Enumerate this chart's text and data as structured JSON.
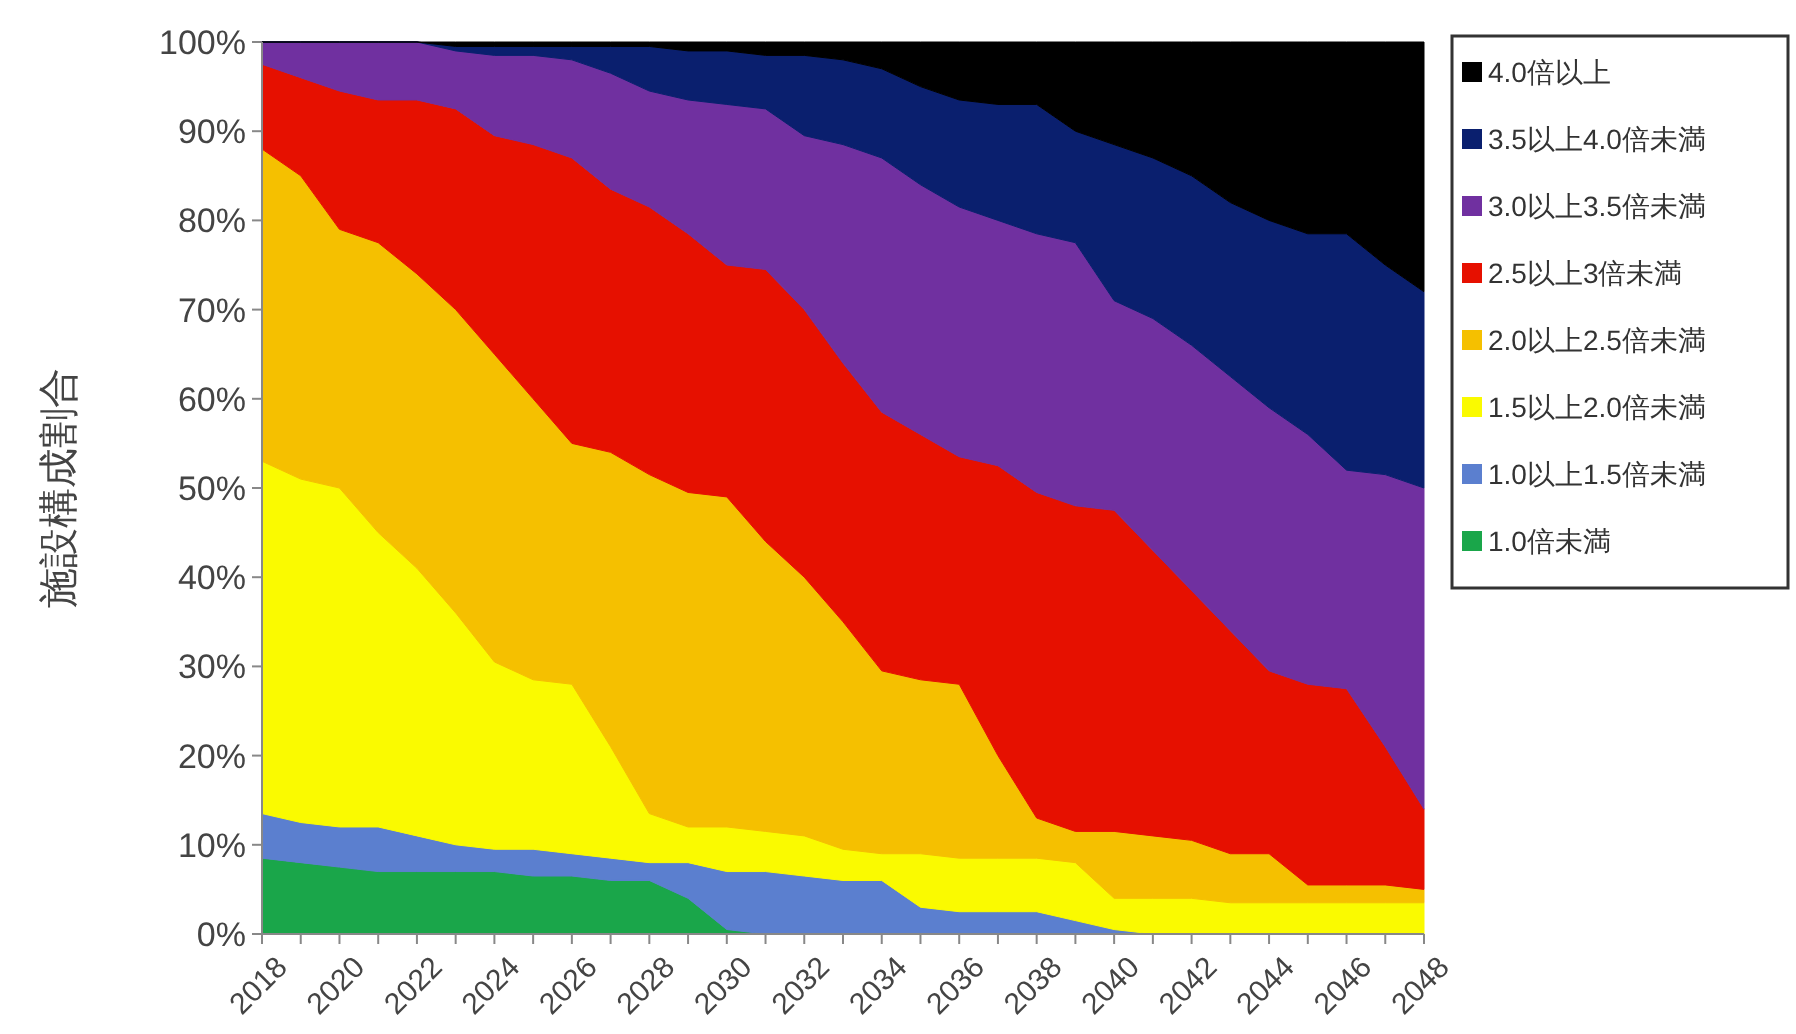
{
  "chart_data": {
    "type": "area",
    "stacked": true,
    "ylabel": "施設構成割合",
    "x": [
      2018,
      2019,
      2020,
      2021,
      2022,
      2023,
      2024,
      2025,
      2026,
      2027,
      2028,
      2029,
      2030,
      2031,
      2032,
      2033,
      2034,
      2035,
      2036,
      2037,
      2038,
      2039,
      2040,
      2041,
      2042,
      2043,
      2044,
      2045,
      2046,
      2047,
      2048
    ],
    "xlim": [
      2018,
      2048
    ],
    "xticks": [
      2018,
      {
        "value": 2019,
        "label": null
      },
      2020,
      {
        "value": 2021,
        "label": null
      },
      2022,
      {
        "value": 2023,
        "label": null
      },
      2024,
      {
        "value": 2025,
        "label": null
      },
      2026,
      {
        "value": 2027,
        "label": null
      },
      2028,
      {
        "value": 2029,
        "label": null
      },
      2030,
      {
        "value": 2031,
        "label": null
      },
      2032,
      {
        "value": 2033,
        "label": null
      },
      2034,
      {
        "value": 2035,
        "label": null
      },
      2036,
      {
        "value": 2037,
        "label": null
      },
      2038,
      {
        "value": 2039,
        "label": null
      },
      2040,
      {
        "value": 2041,
        "label": null
      },
      2042,
      {
        "value": 2043,
        "label": null
      },
      2044,
      {
        "value": 2045,
        "label": null
      },
      2046,
      {
        "value": 2047,
        "label": null
      },
      2048
    ],
    "ylim": [
      0,
      100
    ],
    "yticks": [
      {
        "value": 0,
        "label": "0%"
      },
      {
        "value": 10,
        "label": "10%"
      },
      {
        "value": 20,
        "label": "20%"
      },
      {
        "value": 30,
        "label": "30%"
      },
      {
        "value": 40,
        "label": "40%"
      },
      {
        "value": 50,
        "label": "50%"
      },
      {
        "value": 60,
        "label": "60%"
      },
      {
        "value": 70,
        "label": "70%"
      },
      {
        "value": 80,
        "label": "80%"
      },
      {
        "value": 90,
        "label": "90%"
      },
      {
        "value": 100,
        "label": "100%"
      }
    ],
    "grid": false,
    "legend": "right",
    "series": [
      {
        "name": "1.0倍未満",
        "color": "#1aa64a",
        "values": [
          8.5,
          8,
          7.5,
          7,
          7,
          7,
          7,
          6.5,
          6.5,
          6,
          6,
          4,
          0.5,
          0,
          0,
          0,
          0,
          0,
          0,
          0,
          0,
          0,
          0,
          0,
          0,
          0,
          0,
          0,
          0,
          0,
          0
        ]
      },
      {
        "name": "1.0以上1.5倍未満",
        "color": "#5b7fcf",
        "values": [
          5,
          4.5,
          4.5,
          5,
          4,
          3,
          2.5,
          3,
          2.5,
          2.5,
          2,
          4,
          6.5,
          7,
          6.5,
          6,
          6,
          3,
          2.5,
          2.5,
          2.5,
          1.5,
          0.5,
          0,
          0,
          0,
          0,
          0,
          0,
          0,
          0
        ]
      },
      {
        "name": "1.5以上2.0倍未満",
        "color": "#fafa00",
        "values": [
          39.5,
          38.5,
          38,
          33,
          30,
          26,
          21,
          19,
          19,
          12.5,
          5.5,
          4,
          5,
          4.5,
          4.5,
          3.5,
          3,
          6,
          6,
          6,
          6,
          6.5,
          3.5,
          4,
          4,
          3.5,
          3.5,
          3.5,
          3.5,
          3.5,
          3.5
        ]
      },
      {
        "name": "2.0以上2.5倍未満",
        "color": "#f5c000",
        "values": [
          35,
          34,
          29,
          32.5,
          33,
          34,
          34.5,
          31.5,
          27,
          33,
          38,
          37.5,
          37,
          32.5,
          29,
          25.5,
          20.5,
          19.5,
          19.5,
          11.5,
          4.5,
          3.5,
          7.5,
          7,
          6.5,
          5.5,
          5.5,
          2,
          2,
          2,
          1.5
        ]
      },
      {
        "name": "2.5以上3倍未満",
        "color": "#e61000",
        "values": [
          9.5,
          11,
          15.5,
          16,
          19.5,
          22.5,
          24.5,
          28.5,
          32,
          29.5,
          30,
          29,
          26,
          30.5,
          30,
          29,
          29,
          27.5,
          25.5,
          32.5,
          36.5,
          36.5,
          36,
          32,
          28,
          25,
          20.5,
          22.5,
          22,
          15.5,
          9
        ]
      },
      {
        "name": "3.0以上3.5倍未満",
        "color": "#7030a0",
        "values": [
          2.5,
          4,
          5.5,
          6.5,
          6.5,
          6.5,
          9,
          10,
          11,
          13,
          13,
          15,
          18,
          18,
          19.5,
          24.5,
          28.5,
          28,
          28,
          27.5,
          29,
          29.5,
          23.5,
          26,
          27.5,
          28.5,
          29.5,
          28,
          24.5,
          30.5,
          36
        ]
      },
      {
        "name": "3.5以上4.0倍未満",
        "color": "#0a1f6e",
        "values": [
          0,
          0,
          0,
          0,
          0,
          0.5,
          1,
          1,
          1.5,
          3,
          5,
          5.5,
          6,
          6,
          9,
          9.5,
          10,
          11,
          12,
          13,
          14.5,
          12.5,
          17.5,
          18,
          19,
          19.5,
          21,
          22.5,
          26.5,
          23.5,
          22
        ]
      },
      {
        "name": "4.0倍以上",
        "color": "#000000",
        "values": [
          0,
          0,
          0,
          0,
          0,
          0.5,
          0.5,
          0.5,
          0.5,
          0.5,
          0.5,
          1,
          1,
          1.5,
          1.5,
          2,
          3,
          5,
          6.5,
          7,
          7,
          10,
          11.5,
          13,
          15,
          18,
          20,
          21.5,
          21.5,
          25,
          28
        ]
      }
    ]
  }
}
